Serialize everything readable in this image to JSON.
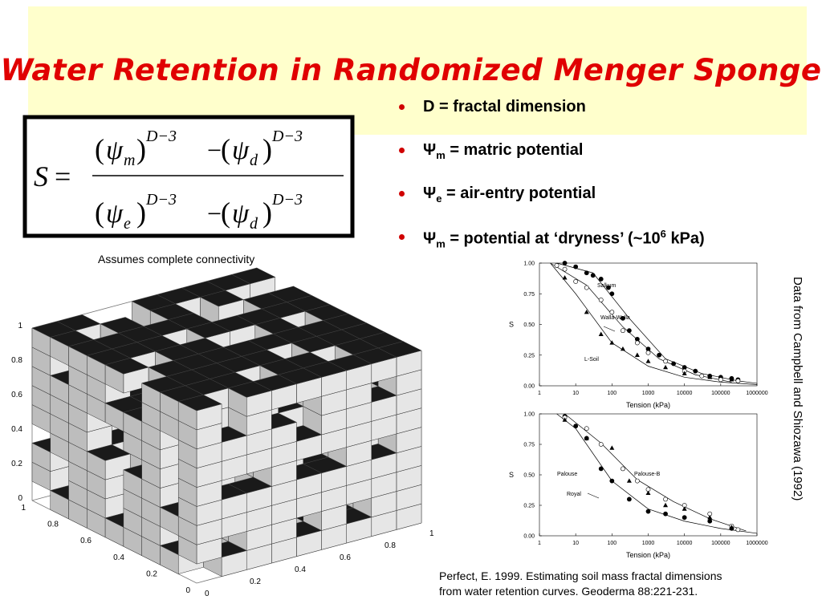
{
  "title": "Water Retention in Randomized Menger Sponge",
  "formula": {
    "lhs": "S",
    "equals": "=",
    "psi": "ψ",
    "exponent": "D−3",
    "minus": "−",
    "open": "(",
    "close": ")",
    "numerator_subs": [
      "m",
      "d"
    ],
    "denominator_subs": [
      "e",
      "d"
    ]
  },
  "bullets": [
    {
      "text": "D = fractal dimension"
    },
    {
      "symbol": "Ψ",
      "sub": "m",
      "text": "= matric potential"
    },
    {
      "symbol": "Ψ",
      "sub": "e",
      "text": "= air-entry potential"
    },
    {
      "symbol": "Ψ",
      "sub": "m",
      "text": "= potential at ‘dryness’ (~10",
      "sup": "6",
      "tail": "kPa)"
    }
  ],
  "caption": "Assumes complete connectivity",
  "source_note": "Data from Campbell and Shiozawa (1992)",
  "reference": [
    "Perfect, E. 1999. Estimating soil mass fractal dimensions",
    "from water retention curves. Geoderma 88:221-231."
  ],
  "sponge_axes": {
    "z_ticks": [
      "1",
      "0.8",
      "0.6",
      "0.4",
      "0.2",
      "0"
    ],
    "left_ticks": [
      "1",
      "0.8",
      "0.6",
      "0.4",
      "0.2",
      "0"
    ],
    "right_ticks": [
      "0",
      "0.2",
      "0.4",
      "0.6",
      "0.8",
      "1"
    ]
  },
  "chart_data": [
    {
      "type": "scatter",
      "xlog": true,
      "xlabel": "Tension (kPa)",
      "ylabel": "S",
      "xlim": [
        1,
        1000000
      ],
      "xticks": [
        1,
        10,
        100,
        1000,
        10000,
        100000,
        1000000
      ],
      "ylim": [
        0,
        1
      ],
      "yticks": [
        {
          "value": 0,
          "label": "0.00"
        },
        {
          "value": 0.25,
          "label": "0.25"
        },
        {
          "value": 0.5,
          "label": "0.50"
        },
        {
          "value": 0.75,
          "label": "0.75"
        },
        {
          "value": 1,
          "label": "1.00"
        }
      ],
      "series": [
        {
          "name": "Salkum",
          "color": "#000000",
          "marker": "filled-circle",
          "x": [
            5,
            10,
            20,
            30,
            50,
            80,
            100,
            200,
            300,
            500,
            1000,
            2000,
            5000,
            10000,
            20000,
            50000,
            100000,
            200000,
            300000
          ],
          "values": [
            1.0,
            0.97,
            0.92,
            0.9,
            0.87,
            0.8,
            0.75,
            0.55,
            0.45,
            0.38,
            0.3,
            0.25,
            0.18,
            0.15,
            0.12,
            0.08,
            0.07,
            0.06,
            0.05
          ],
          "fit_x": [
            3,
            30,
            300,
            3000,
            30000,
            300000,
            1000000
          ],
          "fit_values": [
            1.0,
            0.92,
            0.55,
            0.22,
            0.1,
            0.04,
            0.02
          ]
        },
        {
          "name": "Walla-Walla",
          "color": "#000000",
          "marker": "open-circle",
          "x": [
            3,
            5,
            10,
            20,
            50,
            100,
            200,
            500,
            1000,
            3000,
            10000,
            30000,
            100000,
            300000
          ],
          "values": [
            0.98,
            0.95,
            0.85,
            0.8,
            0.7,
            0.6,
            0.45,
            0.35,
            0.27,
            0.2,
            0.12,
            0.08,
            0.05,
            0.04
          ],
          "fit_x": [
            2,
            20,
            200,
            2000,
            20000,
            200000
          ],
          "fit_values": [
            1.0,
            0.82,
            0.48,
            0.22,
            0.09,
            0.03
          ]
        },
        {
          "name": "L-Soil",
          "color": "#000000",
          "marker": "triangle",
          "x": [
            5,
            20,
            50,
            100,
            200,
            500,
            1000,
            3000,
            10000,
            50000,
            200000
          ],
          "values": [
            0.88,
            0.6,
            0.42,
            0.35,
            0.3,
            0.25,
            0.2,
            0.15,
            0.1,
            0.07,
            0.05
          ],
          "fit_x": [
            2,
            10,
            100,
            1000,
            10000,
            100000,
            1000000
          ],
          "fit_values": [
            1.0,
            0.75,
            0.35,
            0.16,
            0.07,
            0.03,
            0.01
          ]
        }
      ]
    },
    {
      "type": "scatter",
      "xlog": true,
      "xlabel": "Tension (kPa)",
      "ylabel": "S",
      "xlim": [
        1,
        1000000
      ],
      "xticks": [
        1,
        10,
        100,
        1000,
        10000,
        100000,
        1000000
      ],
      "ylim": [
        0,
        1
      ],
      "yticks": [
        {
          "value": 0,
          "label": "0.00"
        },
        {
          "value": 0.25,
          "label": "0.25"
        },
        {
          "value": 0.5,
          "label": "0.50"
        },
        {
          "value": 0.75,
          "label": "0.75"
        },
        {
          "value": 1,
          "label": "1.00"
        }
      ],
      "series": [
        {
          "name": "Palouse",
          "color": "#000000",
          "marker": "filled-circle",
          "x": [
            5,
            10,
            20,
            50,
            100,
            300,
            1000,
            3000,
            10000,
            50000,
            200000
          ],
          "values": [
            0.98,
            0.9,
            0.8,
            0.55,
            0.45,
            0.3,
            0.2,
            0.18,
            0.15,
            0.12,
            0.06
          ],
          "fit_x": [
            3,
            10,
            100,
            1000,
            10000,
            100000,
            1000000
          ],
          "fit_values": [
            1.0,
            0.88,
            0.45,
            0.22,
            0.12,
            0.06,
            0.02
          ]
        },
        {
          "name": "Palouse-B",
          "color": "#000000",
          "marker": "open-circle",
          "x": [
            5,
            20,
            50,
            200,
            500,
            1000,
            3000,
            10000,
            50000,
            200000,
            300000
          ],
          "values": [
            0.97,
            0.88,
            0.75,
            0.55,
            0.45,
            0.38,
            0.3,
            0.25,
            0.18,
            0.08,
            0.05
          ],
          "fit_x": [
            5,
            50,
            500,
            5000,
            50000,
            500000
          ],
          "fit_values": [
            1.0,
            0.76,
            0.46,
            0.28,
            0.14,
            0.04
          ]
        },
        {
          "name": "Royal",
          "color": "#000000",
          "marker": "triangle",
          "x": [
            5,
            20,
            100,
            300,
            1000,
            3000,
            10000,
            50000,
            200000
          ],
          "values": [
            0.95,
            0.8,
            0.72,
            0.45,
            0.35,
            0.25,
            0.22,
            0.15,
            0.07
          ]
        }
      ]
    }
  ]
}
